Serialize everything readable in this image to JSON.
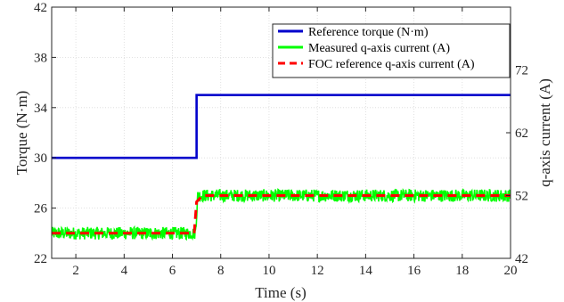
{
  "chart_data": {
    "type": "line",
    "title": "",
    "xlabel": "Time (s)",
    "ylabel": "Torque (N·m)",
    "y2label": "q-axis current (A)",
    "xlim": [
      1,
      20
    ],
    "ylim": [
      22,
      42
    ],
    "y2lim": [
      42,
      82
    ],
    "xticks": [
      2,
      4,
      6,
      8,
      10,
      12,
      14,
      16,
      18,
      20
    ],
    "yticks": [
      22,
      26,
      30,
      34,
      38,
      42
    ],
    "y2ticks": [
      42,
      52,
      62,
      72
    ],
    "grid": true,
    "legend_position": "top-right",
    "series": [
      {
        "name": "Reference torque (N·m)",
        "axis": "left",
        "color": "#0000cc",
        "style": "solid",
        "points": [
          [
            1,
            30
          ],
          [
            7,
            30
          ],
          [
            7,
            35
          ],
          [
            20,
            35
          ]
        ]
      },
      {
        "name": "Measured q-axis current (A)",
        "axis": "right",
        "color": "#00ff00",
        "style": "noisy",
        "noise_band": 1.0,
        "points": [
          [
            1,
            46
          ],
          [
            6.95,
            46
          ],
          [
            7.05,
            52
          ],
          [
            20,
            52
          ]
        ]
      },
      {
        "name": "FOC reference q-axis current (A)",
        "axis": "right",
        "color": "#ff0000",
        "style": "dashed",
        "points": [
          [
            1,
            46
          ],
          [
            6.9,
            46
          ],
          [
            7.0,
            51
          ],
          [
            7.25,
            52
          ],
          [
            20,
            52
          ]
        ]
      }
    ]
  }
}
